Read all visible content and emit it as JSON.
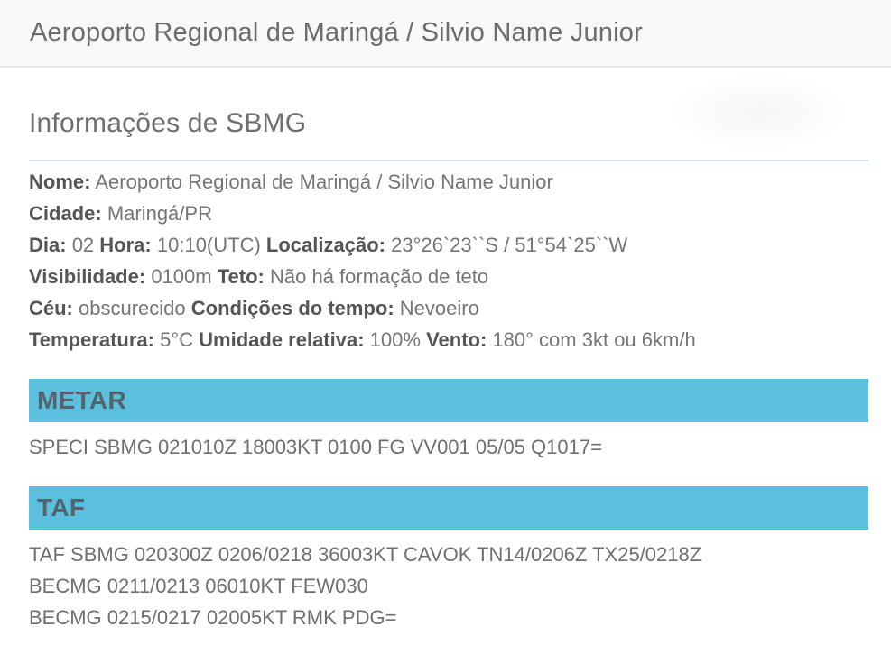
{
  "window": {
    "title": "Aeroporto Regional de Maringá / Silvio Name Junior"
  },
  "page": {
    "heading": "Informações de SBMG"
  },
  "info": {
    "lines": [
      {
        "segments": [
          {
            "label": "Nome:",
            "value": "Aeroporto Regional de Maringá / Silvio Name Junior"
          }
        ]
      },
      {
        "segments": [
          {
            "label": "Cidade:",
            "value": "Maringá/PR"
          }
        ]
      },
      {
        "segments": [
          {
            "label": "Dia:",
            "value": "02"
          },
          {
            "label": "Hora:",
            "value": "10:10(UTC)"
          },
          {
            "label": "Localização:",
            "value": "23°26`23``S / 51°54`25``W"
          }
        ]
      },
      {
        "segments": [
          {
            "label": "Visibilidade:",
            "value": "0100m"
          },
          {
            "label": "Teto:",
            "value": "Não há formação de teto"
          }
        ]
      },
      {
        "segments": [
          {
            "label": "Céu:",
            "value": "obscurecido"
          },
          {
            "label": "Condições do tempo:",
            "value": "Nevoeiro"
          }
        ]
      },
      {
        "segments": [
          {
            "label": "Temperatura:",
            "value": "5°C"
          },
          {
            "label": "Umidade relativa:",
            "value": "100%"
          },
          {
            "label": "Vento:",
            "value": "180° com 3kt ou 6km/h"
          }
        ]
      }
    ]
  },
  "sections": [
    {
      "title": "METAR",
      "lines": [
        "SPECI SBMG 021010Z 18003KT 0100 FG VV001 05/05 Q1017="
      ]
    },
    {
      "title": "TAF",
      "lines": [
        "TAF SBMG 020300Z 0206/0218 36003KT CAVOK TN14/0206Z TX25/0218Z",
        "BECMG 0211/0213 06010KT FEW030",
        "BECMG 0215/0217 02005KT RMK PDG="
      ]
    }
  ],
  "colors": {
    "accent_bar": "#5bc0de",
    "divider": "#c9e7f2",
    "label_text": "#555555",
    "body_text": "#757575",
    "header_bg": "#f8f8f8"
  }
}
